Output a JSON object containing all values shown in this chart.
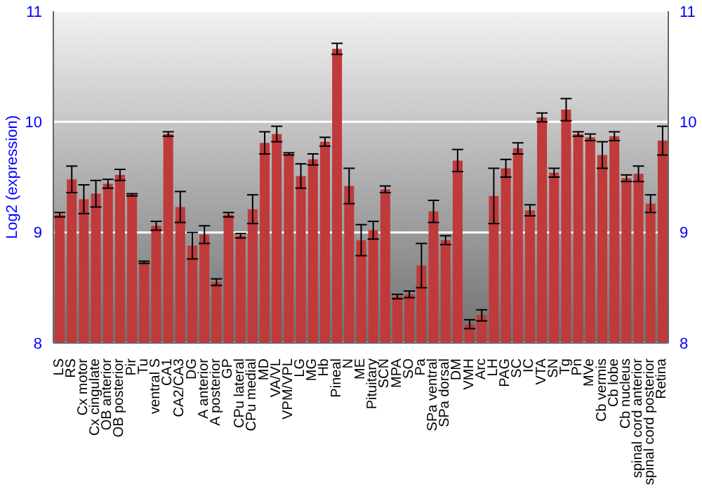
{
  "chart_data": {
    "type": "bar",
    "ylabel": "Log2 (expression)",
    "categories": [
      "LS",
      "RS",
      "Cx motor",
      "Cx cingulate",
      "OB anterior",
      "OB posterior",
      "Pir",
      "Tu",
      "ventral S",
      "CA1",
      "CA2/CA3",
      "DG",
      "A anterior",
      "A posterior",
      "GP",
      "CPu lateral",
      "CPu medial",
      "MD",
      "VA/VL",
      "VPM/VPL",
      "LG",
      "MG",
      "Hb",
      "Pineal",
      "N",
      "ME",
      "Pituitary",
      "SCN",
      "MPA",
      "SO",
      "Pa",
      "SPa ventral",
      "SPa dorsal",
      "DM",
      "VMH",
      "Arc",
      "LH",
      "PAG",
      "SC",
      "IC",
      "VTA",
      "SN",
      "Tg",
      "Pn",
      "MVe",
      "Cb vermis",
      "Cb lobe",
      "Cb nucleus",
      "spinal cord anterior",
      "spinal cord posterior",
      "Retina"
    ],
    "values": [
      9.16,
      9.48,
      9.3,
      9.35,
      9.44,
      9.52,
      9.34,
      8.73,
      9.06,
      9.89,
      9.23,
      8.88,
      8.98,
      8.55,
      9.16,
      8.97,
      9.21,
      9.81,
      9.89,
      9.71,
      9.51,
      9.66,
      9.82,
      10.66,
      9.42,
      8.93,
      9.02,
      9.39,
      8.42,
      8.44,
      8.7,
      9.19,
      8.93,
      9.65,
      8.17,
      8.25,
      9.33,
      9.58,
      9.76,
      9.2,
      10.04,
      9.54,
      10.11,
      9.89,
      9.86,
      9.7,
      9.87,
      9.49,
      9.53,
      9.26,
      9.83
    ],
    "errors": [
      0.02,
      0.12,
      0.13,
      0.12,
      0.04,
      0.05,
      0.01,
      0.01,
      0.04,
      0.02,
      0.14,
      0.12,
      0.08,
      0.03,
      0.02,
      0.02,
      0.13,
      0.1,
      0.07,
      0.01,
      0.11,
      0.05,
      0.04,
      0.05,
      0.16,
      0.14,
      0.08,
      0.03,
      0.02,
      0.03,
      0.2,
      0.1,
      0.04,
      0.1,
      0.04,
      0.05,
      0.25,
      0.08,
      0.05,
      0.05,
      0.04,
      0.04,
      0.1,
      0.02,
      0.03,
      0.12,
      0.04,
      0.03,
      0.07,
      0.08,
      0.13
    ],
    "color": "#c0393b",
    "ylim": [
      8,
      11
    ],
    "yticks": [
      8,
      9,
      10,
      11
    ],
    "y2lim": [
      8,
      11
    ],
    "y2ticks": [
      8,
      9,
      10,
      11
    ],
    "grid": "y"
  }
}
